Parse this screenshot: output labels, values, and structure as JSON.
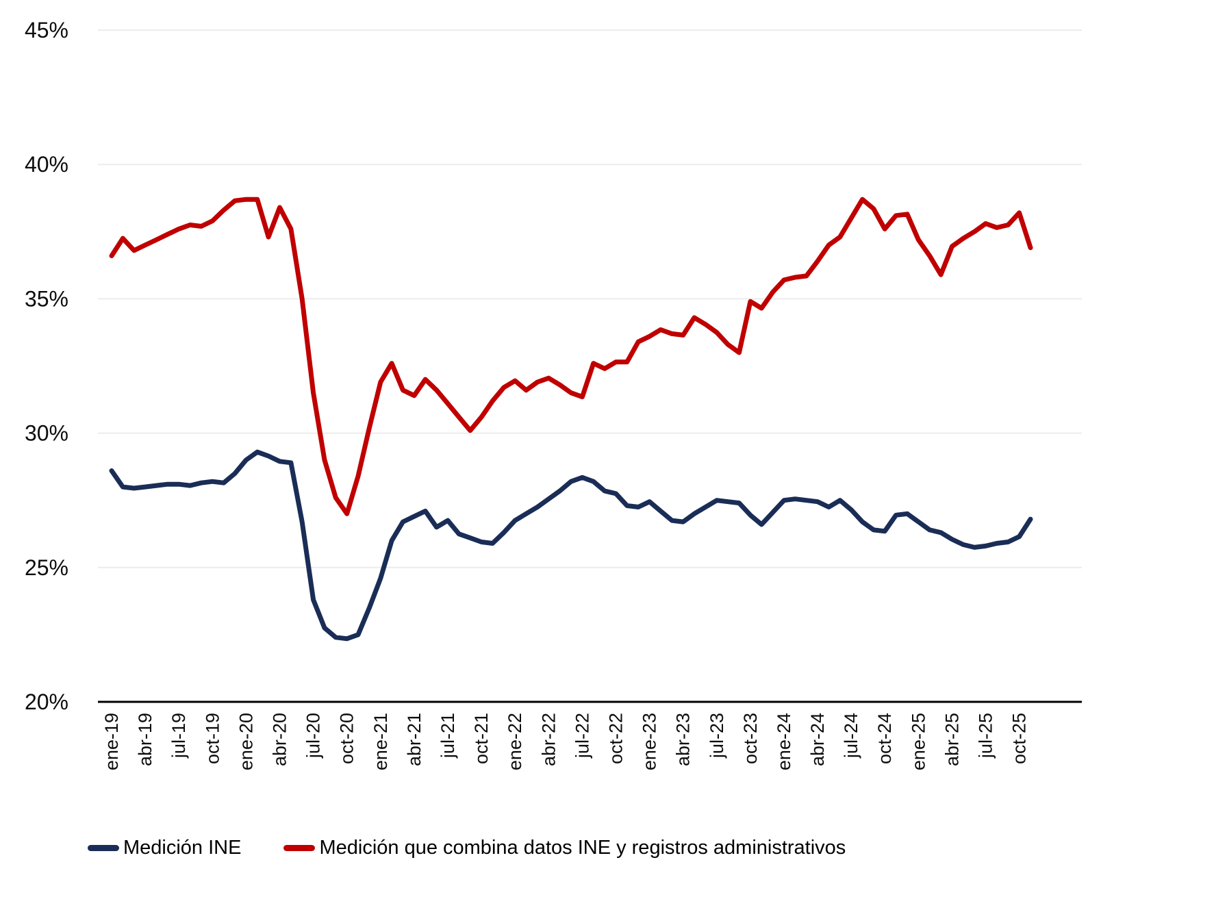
{
  "chart_data": {
    "type": "line",
    "title": "",
    "xlabel": "",
    "ylabel": "",
    "ylim": [
      20,
      45
    ],
    "yticks": [
      20,
      25,
      30,
      35,
      40,
      45
    ],
    "ytick_suffix": "%",
    "grid": "horizontal",
    "legend_position": "bottom",
    "x_tick_every": 3,
    "categories": [
      "ene-19",
      "feb-19",
      "mar-19",
      "abr-19",
      "may-19",
      "jun-19",
      "jul-19",
      "ago-19",
      "sep-19",
      "oct-19",
      "nov-19",
      "dic-19",
      "ene-20",
      "feb-20",
      "mar-20",
      "abr-20",
      "may-20",
      "jun-20",
      "jul-20",
      "ago-20",
      "sep-20",
      "oct-20",
      "nov-20",
      "dic-20",
      "ene-21",
      "feb-21",
      "mar-21",
      "abr-21",
      "may-21",
      "jun-21",
      "jul-21",
      "ago-21",
      "sep-21",
      "oct-21",
      "nov-21",
      "dic-21",
      "ene-22",
      "feb-22",
      "mar-22",
      "abr-22",
      "may-22",
      "jun-22",
      "jul-22",
      "ago-22",
      "sep-22",
      "oct-22",
      "nov-22",
      "dic-22",
      "ene-23",
      "feb-23",
      "mar-23",
      "abr-23",
      "may-23",
      "jun-23",
      "jul-23",
      "ago-23",
      "sep-23",
      "oct-23",
      "nov-23",
      "dic-23",
      "ene-24",
      "feb-24",
      "mar-24",
      "abr-24",
      "may-24",
      "jun-24",
      "jul-24",
      "ago-24",
      "sep-24",
      "oct-24",
      "nov-24",
      "dic-24",
      "ene-25",
      "feb-25",
      "mar-25",
      "abr-25",
      "may-25",
      "jun-25",
      "jul-25",
      "ago-25",
      "sep-25",
      "oct-25",
      "nov-25"
    ],
    "series": [
      {
        "name": "Medición INE",
        "color": "#1a2d56",
        "values": [
          28.6,
          28.0,
          27.95,
          28.0,
          28.05,
          28.1,
          28.1,
          28.05,
          28.15,
          28.2,
          28.15,
          28.5,
          29.0,
          29.3,
          29.15,
          28.95,
          28.9,
          26.7,
          23.8,
          22.75,
          22.4,
          22.35,
          22.5,
          23.5,
          24.6,
          26.0,
          26.7,
          26.9,
          27.1,
          26.5,
          26.75,
          26.25,
          26.1,
          25.95,
          25.9,
          26.3,
          26.75,
          27.0,
          27.25,
          27.55,
          27.85,
          28.2,
          28.35,
          28.2,
          27.85,
          27.75,
          27.3,
          27.25,
          27.45,
          27.1,
          26.75,
          26.7,
          27.0,
          27.25,
          27.5,
          27.45,
          27.4,
          26.95,
          26.6,
          27.05,
          27.5,
          27.55,
          27.5,
          27.45,
          27.25,
          27.5,
          27.15,
          26.7,
          26.4,
          26.35,
          26.95,
          27.0,
          26.7,
          26.4,
          26.3,
          26.05,
          25.85,
          25.75,
          25.8,
          25.9,
          25.95,
          26.15,
          26.8
        ]
      },
      {
        "name": "Medición que combina datos INE y registros administrativos",
        "color": "#c00000",
        "values": [
          36.6,
          37.25,
          36.8,
          37.0,
          37.2,
          37.4,
          37.6,
          37.75,
          37.7,
          37.9,
          38.3,
          38.65,
          38.7,
          38.7,
          37.3,
          38.4,
          37.6,
          35.0,
          31.5,
          29.0,
          27.6,
          27.0,
          28.4,
          30.2,
          31.9,
          32.6,
          31.6,
          31.4,
          32.0,
          31.6,
          31.1,
          30.6,
          30.1,
          30.6,
          31.2,
          31.7,
          31.95,
          31.6,
          31.9,
          32.05,
          31.8,
          31.5,
          31.35,
          32.6,
          32.4,
          32.65,
          32.65,
          33.4,
          33.6,
          33.85,
          33.7,
          33.65,
          34.3,
          34.05,
          33.75,
          33.3,
          33.0,
          34.9,
          34.65,
          35.25,
          35.7,
          35.8,
          35.85,
          36.4,
          37.0,
          37.3,
          38.0,
          38.7,
          38.35,
          37.6,
          38.1,
          38.15,
          37.2,
          36.6,
          35.9,
          36.95,
          37.25,
          37.5,
          37.8,
          37.65,
          37.75,
          38.2,
          36.9
        ]
      }
    ]
  },
  "legend": {
    "items": [
      {
        "label": "Medición INE",
        "color": "#1a2d56"
      },
      {
        "label": "Medición que combina datos INE y registros administrativos",
        "color": "#c00000"
      }
    ]
  },
  "colors": {
    "gridline": "#ececec",
    "axis": "#000000",
    "background": "#ffffff"
  }
}
